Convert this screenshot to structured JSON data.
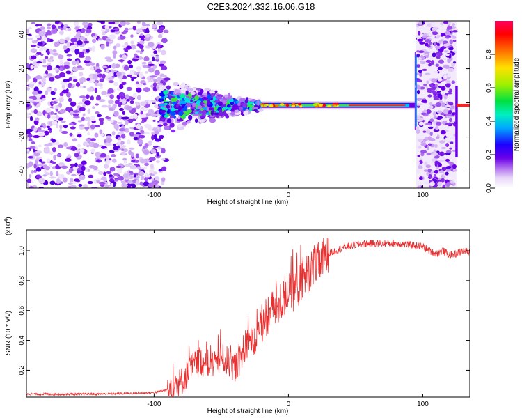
{
  "page": {
    "title": "C2E3.2024.332.16.06.G18"
  },
  "chart_data": [
    {
      "type": "heatmap",
      "title": "C2E3.2024.332.16.06.G18",
      "xlabel": "Height of straight line (km)",
      "ylabel": "Frequency (Hz)",
      "xlim": [
        -195,
        135
      ],
      "ylim": [
        -50,
        48
      ],
      "x_ticks": [
        -100,
        0,
        100
      ],
      "y_ticks": [
        -40,
        -20,
        0,
        20,
        40
      ],
      "colorbar": {
        "label": "Normalized spectral amplitude",
        "range": [
          0,
          1
        ],
        "ticks": [
          "0.0",
          "0.2",
          "0.4",
          "0.6",
          "0.8"
        ],
        "tick_values": [
          0,
          0.2,
          0.4,
          0.6,
          0.8
        ],
        "colormap": [
          "#ffffff",
          "#e8d8f8",
          "#b070f0",
          "#6a00e8",
          "#1c00ff",
          "#00a8ff",
          "#00f0c0",
          "#00e040",
          "#a0f000",
          "#ffe000",
          "#ff7000",
          "#ff0000",
          "#ff0060"
        ]
      },
      "features": {
        "noise_region_km": [
          -195,
          -95
        ],
        "transition_region_km": [
          -95,
          -20
        ],
        "stable_signal_km": [
          -20,
          95
        ],
        "second_noise_region_km": [
          95,
          125
        ],
        "signal_frequency_hz": -1.5
      }
    },
    {
      "type": "line",
      "xlabel": "Height of straight line (km)",
      "ylabel": "SNR (10 * v/v)",
      "y_multiplier": "(x10",
      "y_multiplier_exp": "4",
      "y_multiplier_close": ")",
      "xlim": [
        -195,
        135
      ],
      "ylim": [
        0.02,
        1.14
      ],
      "x_ticks": [
        -100,
        0,
        100
      ],
      "y_ticks": [
        "0.2",
        "0.4",
        "0.6",
        "0.8",
        "1.0"
      ],
      "y_tick_values": [
        0.2,
        0.4,
        0.6,
        0.8,
        1.0
      ],
      "color": "#e83030",
      "series": [
        {
          "x": [
            -195,
            -150,
            -120,
            -100,
            -90,
            -80,
            -75,
            -70,
            -65,
            -60,
            -55,
            -50,
            -45,
            -40,
            -35,
            -30,
            -25,
            -20,
            -15,
            -10,
            -5,
            0,
            5,
            10,
            15,
            20,
            25,
            30,
            40,
            50,
            60,
            70,
            80,
            90,
            100,
            105,
            110,
            115,
            120,
            125,
            130,
            135
          ],
          "values": [
            0.04,
            0.04,
            0.045,
            0.05,
            0.07,
            0.12,
            0.18,
            0.24,
            0.26,
            0.24,
            0.25,
            0.28,
            0.26,
            0.22,
            0.28,
            0.4,
            0.38,
            0.52,
            0.58,
            0.6,
            0.66,
            0.7,
            0.74,
            0.78,
            0.86,
            0.9,
            0.94,
            0.98,
            1.02,
            1.04,
            1.05,
            1.05,
            1.05,
            1.04,
            1.03,
            1.0,
            0.98,
            1.0,
            0.97,
            0.98,
            1.0,
            0.99
          ]
        }
      ]
    }
  ]
}
